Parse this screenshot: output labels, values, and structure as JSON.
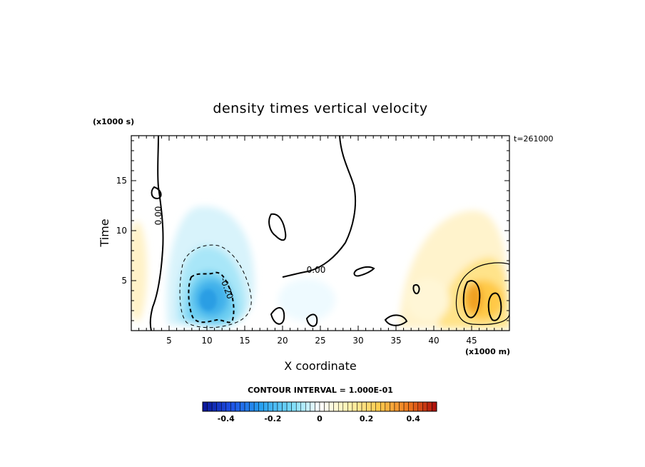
{
  "chart_data": {
    "type": "heatmap",
    "title": "density times vertical velocity",
    "xlabel": "X coordinate",
    "ylabel": "Time",
    "x_unit": "(x1000 m)",
    "y_unit": "(x1000 s)",
    "time_stamp": "t=261000",
    "xlim": [
      0,
      50
    ],
    "ylim": [
      0,
      19.5
    ],
    "x_ticks": [
      "5",
      "10",
      "15",
      "20",
      "25",
      "30",
      "35",
      "40",
      "45"
    ],
    "y_ticks": [
      "5",
      "10",
      "15"
    ],
    "contour_interval": "CONTOUR INTERVAL = 1.000E-01",
    "colorbar": {
      "min": -0.5,
      "max": 0.5,
      "ticks": [
        "-0.4",
        "-0.2",
        "0",
        "0.2",
        "0.4"
      ],
      "tick_values": [
        -0.4,
        -0.2,
        0,
        0.2,
        0.4
      ]
    },
    "contour_labels": [
      "0.00",
      "0.00",
      "-0.20"
    ],
    "features": [
      {
        "name": "negative core",
        "x": 10.5,
        "y": 3.5,
        "value": -0.32
      },
      {
        "name": "negative halo",
        "x": 11,
        "y": 7,
        "value": -0.12
      },
      {
        "name": "positive core",
        "x": 45.5,
        "y": 3.2,
        "value": 0.3
      },
      {
        "name": "positive halo",
        "x": 46,
        "y": 6,
        "value": 0.12
      },
      {
        "name": "left positive",
        "x": 0.8,
        "y": 5,
        "value": 0.06
      }
    ]
  }
}
